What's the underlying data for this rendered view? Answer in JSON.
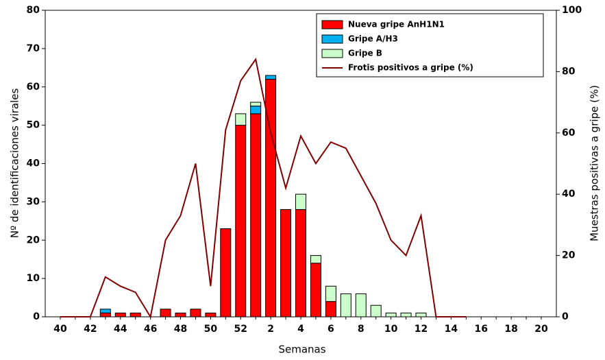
{
  "chart_data": {
    "type": "bar+line",
    "x_label": "Semanas",
    "y_label": "Nº de identificaciones virales",
    "y2_label": "Muestras positivas a gripe (%)",
    "categories": [
      "40",
      null,
      "42",
      null,
      "44",
      null,
      "46",
      null,
      "48",
      null,
      "50",
      null,
      "52",
      null,
      "2",
      null,
      "4",
      null,
      "6",
      null,
      "8",
      null,
      "10",
      null,
      "12",
      null,
      "14",
      null,
      "16",
      null,
      "18",
      null,
      "20"
    ],
    "series": [
      {
        "name": "Nueva gripe AnH1N1",
        "type": "bar",
        "color": "#ff0000",
        "values": [
          0,
          0,
          0,
          1,
          1,
          1,
          0,
          2,
          1,
          2,
          1,
          23,
          50,
          53,
          62,
          28,
          28,
          14,
          4,
          0,
          0,
          0,
          0,
          0,
          0,
          0,
          0,
          0,
          0,
          0,
          0,
          0,
          0
        ]
      },
      {
        "name": "Gripe A/H3",
        "type": "bar",
        "color": "#00b0f0",
        "values": [
          0,
          0,
          0,
          1,
          0,
          0,
          0,
          0,
          0,
          0,
          0,
          0,
          0,
          2,
          1,
          0,
          0,
          0,
          0,
          0,
          0,
          0,
          0,
          0,
          0,
          0,
          0,
          0,
          0,
          0,
          0,
          0,
          0
        ]
      },
      {
        "name": "Gripe B",
        "type": "bar",
        "color": "#ccffcc",
        "values": [
          0,
          0,
          0,
          0,
          0,
          0,
          0,
          0,
          0,
          0,
          0,
          0,
          3,
          1,
          0,
          0,
          4,
          2,
          4,
          6,
          6,
          3,
          1,
          1,
          1,
          0,
          0,
          0,
          0,
          0,
          0,
          0,
          0
        ]
      },
      {
        "name": "Frotis positivos a gripe (%)",
        "type": "line",
        "axis": "y2",
        "color": "#800000",
        "values": [
          0,
          0,
          0,
          13,
          10,
          8,
          0,
          25,
          33,
          50,
          10,
          61,
          77,
          84,
          60,
          42,
          59,
          50,
          57,
          55,
          46,
          37,
          25,
          20,
          33,
          0,
          0,
          0,
          null,
          null,
          null,
          null,
          null
        ]
      }
    ],
    "ylim": [
      0,
      80
    ],
    "yticks": [
      0,
      10,
      20,
      30,
      40,
      50,
      60,
      70,
      80
    ],
    "y2lim": [
      0,
      100
    ],
    "y2ticks": [
      0,
      20,
      40,
      60,
      80,
      100
    ]
  }
}
